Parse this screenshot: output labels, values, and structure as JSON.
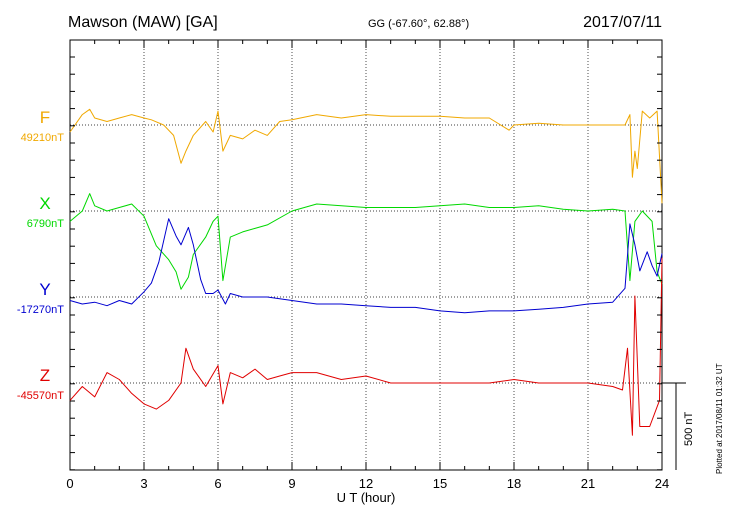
{
  "header": {
    "station": "Mawson (MAW)  [GA]",
    "coords": "GG (-67.60°,  62.88°)",
    "date": "2017/07/11"
  },
  "footer_note": "Plotted at 2017/08/11 01:32 UT",
  "scale_label": "500 nT",
  "colors": {
    "F": "#f0a800",
    "X": "#00d800",
    "Y": "#0000d0",
    "Z": "#e00000",
    "axis": "#000000"
  },
  "chart_data": {
    "type": "line",
    "title": "Mawson (MAW)  [GA]",
    "xlabel": "U T (hour)",
    "ylabel": "",
    "xlim": [
      0,
      24
    ],
    "x_ticks": [
      0,
      3,
      6,
      9,
      12,
      15,
      18,
      21,
      24
    ],
    "x_tick_labels": [
      "0",
      "3",
      "6",
      "9",
      "12",
      "15",
      "18",
      "21",
      "24"
    ],
    "grid": true,
    "scale_bar_nT": 500,
    "series": [
      {
        "name": "F",
        "baseline_label": "49210nT",
        "color": "#f0a800",
        "x": [
          0,
          0.5,
          0.8,
          1.0,
          1.5,
          2.0,
          2.5,
          3.0,
          3.3,
          3.8,
          4.2,
          4.5,
          4.7,
          5.0,
          5.5,
          5.8,
          6.0,
          6.2,
          6.5,
          7.0,
          7.5,
          8.0,
          8.5,
          9.0,
          10.0,
          11.0,
          12.0,
          13.0,
          14.0,
          15.0,
          16.0,
          17.0,
          17.8,
          18.0,
          19.0,
          20.0,
          21.0,
          22.0,
          22.5,
          22.7,
          22.8,
          22.9,
          23.0,
          23.2,
          23.5,
          23.8,
          24.0
        ],
        "values": [
          -40,
          60,
          90,
          40,
          20,
          40,
          60,
          40,
          30,
          0,
          -60,
          -220,
          -150,
          -60,
          20,
          -40,
          80,
          -150,
          -60,
          -80,
          -30,
          -60,
          20,
          30,
          60,
          40,
          60,
          50,
          50,
          50,
          40,
          40,
          -30,
          0,
          10,
          0,
          0,
          0,
          0,
          60,
          -300,
          -150,
          -250,
          80,
          40,
          80,
          -450
        ]
      },
      {
        "name": "X",
        "baseline_label": "6790nT",
        "color": "#00d800",
        "x": [
          0,
          0.5,
          0.8,
          1.0,
          1.5,
          2.0,
          2.5,
          3.0,
          3.5,
          4.0,
          4.3,
          4.5,
          4.8,
          5.0,
          5.5,
          5.8,
          6.0,
          6.2,
          6.5,
          7.0,
          7.5,
          8.0,
          9.0,
          10.0,
          11.0,
          12.0,
          13.0,
          14.0,
          15.0,
          16.0,
          17.0,
          18.0,
          19.0,
          20.0,
          21.0,
          22.0,
          22.5,
          22.7,
          22.9,
          23.2,
          23.6,
          23.8,
          24.0
        ],
        "values": [
          -60,
          0,
          100,
          30,
          0,
          20,
          40,
          -30,
          -200,
          -280,
          -350,
          -450,
          -380,
          -250,
          -150,
          -60,
          -30,
          -400,
          -150,
          -120,
          -100,
          -80,
          0,
          40,
          30,
          20,
          20,
          20,
          30,
          40,
          20,
          20,
          30,
          10,
          0,
          10,
          0,
          -400,
          -60,
          0,
          -60,
          -350,
          -420
        ]
      },
      {
        "name": "Y",
        "baseline_label": "-17270nT",
        "color": "#0000d0",
        "x": [
          0,
          0.5,
          1.0,
          1.5,
          2.0,
          2.5,
          3.0,
          3.3,
          3.6,
          4.0,
          4.3,
          4.5,
          4.8,
          5.0,
          5.3,
          5.5,
          5.8,
          6.0,
          6.3,
          6.5,
          7.0,
          8.0,
          9.0,
          10.0,
          11.0,
          12.0,
          13.0,
          14.0,
          15.0,
          16.0,
          17.0,
          18.0,
          19.0,
          20.0,
          21.0,
          22.0,
          22.5,
          22.7,
          22.9,
          23.1,
          23.4,
          23.6,
          23.8,
          24.0
        ],
        "values": [
          -20,
          -40,
          -30,
          -50,
          -20,
          -40,
          30,
          80,
          200,
          450,
          350,
          300,
          400,
          300,
          100,
          20,
          20,
          40,
          -40,
          20,
          0,
          0,
          -20,
          -40,
          -40,
          -50,
          -60,
          -60,
          -80,
          -90,
          -80,
          -80,
          -70,
          -60,
          -40,
          -30,
          50,
          420,
          300,
          150,
          260,
          180,
          120,
          250
        ]
      },
      {
        "name": "Z",
        "baseline_label": "-45570nT",
        "color": "#e00000",
        "x": [
          0,
          0.5,
          1.0,
          1.5,
          2.0,
          2.5,
          3.0,
          3.5,
          4.0,
          4.5,
          4.7,
          5.0,
          5.5,
          6.0,
          6.2,
          6.5,
          7.0,
          7.5,
          8.0,
          8.5,
          9.0,
          10.0,
          11.0,
          12.0,
          13.0,
          14.0,
          15.0,
          16.0,
          17.0,
          18.0,
          19.0,
          20.0,
          21.0,
          22.0,
          22.4,
          22.6,
          22.8,
          22.9,
          23.1,
          23.5,
          23.9,
          24.0
        ],
        "values": [
          -100,
          -20,
          -80,
          60,
          20,
          -60,
          -120,
          -150,
          -100,
          0,
          200,
          80,
          -20,
          100,
          -120,
          60,
          30,
          80,
          20,
          40,
          60,
          60,
          20,
          40,
          0,
          0,
          0,
          0,
          0,
          20,
          0,
          0,
          0,
          -20,
          -40,
          200,
          -300,
          500,
          -250,
          -250,
          -100,
          720
        ]
      }
    ]
  }
}
